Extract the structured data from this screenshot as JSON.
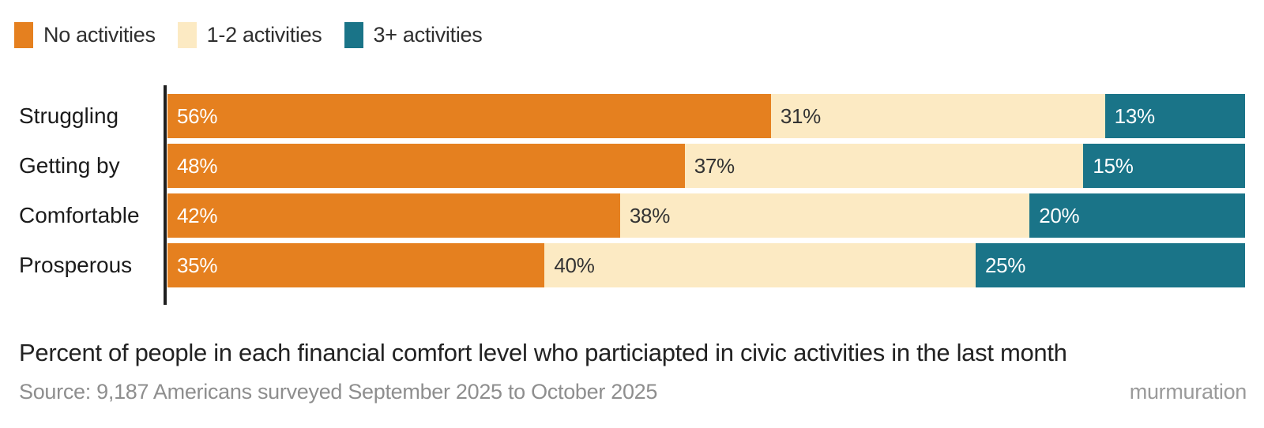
{
  "legend": {
    "items": [
      {
        "label": "No activities",
        "color": "#E5801F"
      },
      {
        "label": "1-2 activities",
        "color": "#FCEAC3"
      },
      {
        "label": "3+ activities",
        "color": "#1A7488"
      }
    ]
  },
  "chart_data": {
    "type": "bar",
    "orientation": "horizontal",
    "stacked": true,
    "unit": "%",
    "xlim": [
      0,
      100
    ],
    "grid": false,
    "legend_position": "top-left",
    "axis_color": "#1f1f1f",
    "categories": [
      "Struggling",
      "Getting by",
      "Comfortable",
      "Prosperous"
    ],
    "series": [
      {
        "name": "No activities",
        "color": "#E5801F",
        "values": [
          56,
          48,
          42,
          35
        ]
      },
      {
        "name": "1-2 activities",
        "color": "#FCEAC3",
        "values": [
          31,
          37,
          38,
          40
        ]
      },
      {
        "name": "3+ activities",
        "color": "#1A7488",
        "values": [
          13,
          15,
          20,
          25
        ]
      }
    ],
    "rows": [
      {
        "category": "Struggling",
        "segments": [
          {
            "series": "No activities",
            "value": 56,
            "label": "56%"
          },
          {
            "series": "1-2 activities",
            "value": 31,
            "label": "31%"
          },
          {
            "series": "3+ activities",
            "value": 13,
            "label": "13%"
          }
        ]
      },
      {
        "category": "Getting by",
        "segments": [
          {
            "series": "No activities",
            "value": 48,
            "label": "48%"
          },
          {
            "series": "1-2 activities",
            "value": 37,
            "label": "37%"
          },
          {
            "series": "3+ activities",
            "value": 15,
            "label": "15%"
          }
        ]
      },
      {
        "category": "Comfortable",
        "segments": [
          {
            "series": "No activities",
            "value": 42,
            "label": "42%"
          },
          {
            "series": "1-2 activities",
            "value": 38,
            "label": "38%"
          },
          {
            "series": "3+ activities",
            "value": 20,
            "label": "20%"
          }
        ]
      },
      {
        "category": "Prosperous",
        "segments": [
          {
            "series": "No activities",
            "value": 35,
            "label": "35%"
          },
          {
            "series": "1-2 activities",
            "value": 40,
            "label": "40%"
          },
          {
            "series": "3+ activities",
            "value": 25,
            "label": "25%"
          }
        ]
      }
    ],
    "title": "Percent of people in each financial comfort level who particiapted in civic activities in the last month"
  },
  "caption": "Percent of people in each financial comfort level who particiapted in civic activities in the last month",
  "source": "Source: 9,187 Americans surveyed September 2025 to October 2025",
  "branding": "murmuration"
}
